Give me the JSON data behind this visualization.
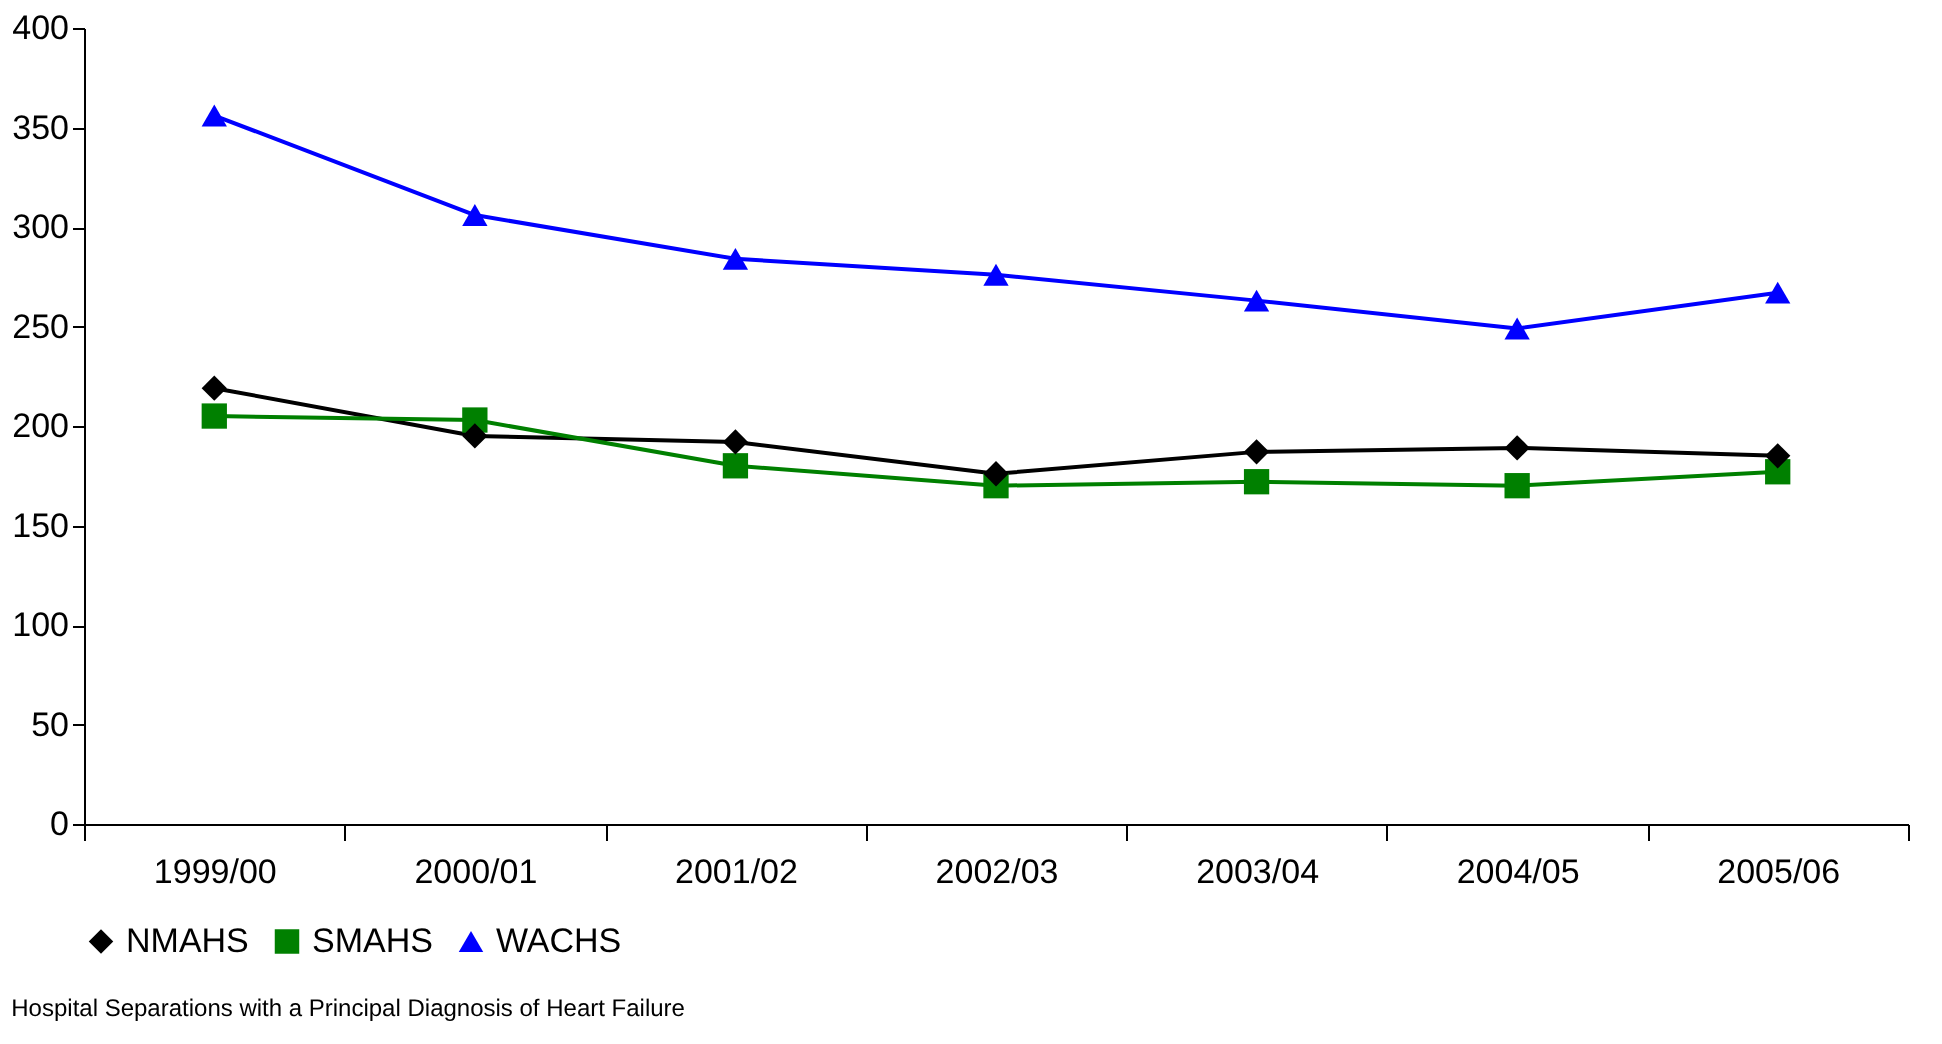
{
  "chart_data": {
    "type": "line",
    "categories": [
      "1999/00",
      "2000/01",
      "2001/02",
      "2002/03",
      "2003/04",
      "2004/05",
      "2005/06"
    ],
    "series": [
      {
        "name": "NMAHS",
        "color": "#000000",
        "marker": "diamond",
        "values": [
          219,
          195,
          192,
          176,
          187,
          189,
          185
        ]
      },
      {
        "name": "SMAHS",
        "color": "#008000",
        "marker": "square",
        "values": [
          205,
          203,
          180,
          170,
          172,
          170,
          177
        ]
      },
      {
        "name": "WACHS",
        "color": "#0000ff",
        "marker": "triangle",
        "values": [
          356,
          306,
          284,
          276,
          263,
          249,
          267
        ]
      }
    ],
    "ylim": [
      0,
      400
    ],
    "yticks": [
      0,
      50,
      100,
      150,
      200,
      250,
      300,
      350,
      400
    ],
    "grid": false,
    "legend": "bottom",
    "line_style": "solid",
    "annotations": [
      "Hospital Separations with a Principal Diagnosis of Heart Failure"
    ]
  }
}
